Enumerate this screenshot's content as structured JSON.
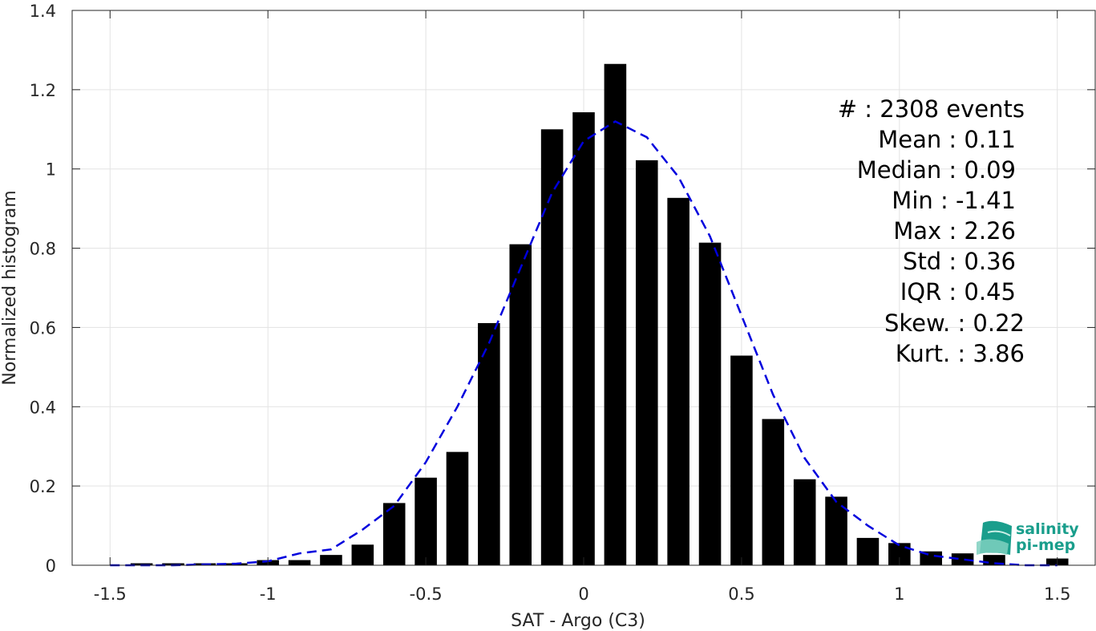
{
  "chart_data": {
    "type": "bar",
    "xlabel": "SAT - Argo (C3)",
    "ylabel": "Normalized histogram",
    "xlim": [
      -1.62,
      1.62
    ],
    "ylim": [
      0,
      1.4
    ],
    "xticks": [
      -1.5,
      -1,
      -0.5,
      0,
      0.5,
      1,
      1.5
    ],
    "xtick_labels": [
      "-1.5",
      "-1",
      "-0.5",
      "0",
      "0.5",
      "1",
      "1.5"
    ],
    "yticks": [
      0,
      0.2,
      0.4,
      0.6,
      0.8,
      1,
      1.2,
      1.4
    ],
    "ytick_labels": [
      "0",
      "0.2",
      "0.4",
      "0.6",
      "0.8",
      "1",
      "1.2",
      "1.4"
    ],
    "grid": true,
    "bar_width": 0.07,
    "bar_color": "#000000",
    "bars": {
      "x": [
        -1.4,
        -1.3,
        -1.2,
        -1.1,
        -1.0,
        -0.9,
        -0.8,
        -0.7,
        -0.6,
        -0.5,
        -0.4,
        -0.3,
        -0.2,
        -0.1,
        0.0,
        0.1,
        0.2,
        0.3,
        0.4,
        0.5,
        0.6,
        0.7,
        0.8,
        0.9,
        1.0,
        1.1,
        1.2,
        1.3,
        1.5
      ],
      "values": [
        0.005,
        0.005,
        0.005,
        0.005,
        0.013,
        0.013,
        0.026,
        0.052,
        0.157,
        0.221,
        0.286,
        0.611,
        0.81,
        1.1,
        1.143,
        1.265,
        1.022,
        0.927,
        0.814,
        0.529,
        0.369,
        0.217,
        0.173,
        0.069,
        0.056,
        0.035,
        0.03,
        0.026,
        0.017
      ]
    },
    "fit_line": {
      "style": "dashed",
      "color": "#0000dd",
      "x": [
        -1.5,
        -1.4,
        -1.3,
        -1.2,
        -1.1,
        -1.0,
        -0.9,
        -0.8,
        -0.7,
        -0.6,
        -0.5,
        -0.4,
        -0.3,
        -0.2,
        -0.1,
        0.0,
        0.1,
        0.2,
        0.3,
        0.4,
        0.5,
        0.6,
        0.7,
        0.8,
        0.9,
        1.0,
        1.1,
        1.2,
        1.3,
        1.4,
        1.5
      ],
      "values": [
        0.0,
        0.0,
        0.0,
        0.002,
        0.004,
        0.01,
        0.03,
        0.04,
        0.09,
        0.15,
        0.26,
        0.4,
        0.56,
        0.75,
        0.94,
        1.07,
        1.12,
        1.08,
        0.98,
        0.83,
        0.63,
        0.43,
        0.27,
        0.16,
        0.1,
        0.05,
        0.025,
        0.015,
        0.005,
        0.0,
        0.0
      ]
    }
  },
  "stats": [
    {
      "label": "#  : 2308 events"
    },
    {
      "label": "Mean : 0.11"
    },
    {
      "label": "Median : 0.09"
    },
    {
      "label": "Min : -1.41"
    },
    {
      "label": "Max : 2.26"
    },
    {
      "label": "Std : 0.36"
    },
    {
      "label": "IQR : 0.45"
    },
    {
      "label": "Skew. : 0.22"
    },
    {
      "label": "Kurt. : 3.86"
    }
  ],
  "logo": {
    "line1": "salinity",
    "line2": "pi-mep",
    "color": "#1a9e8c"
  }
}
